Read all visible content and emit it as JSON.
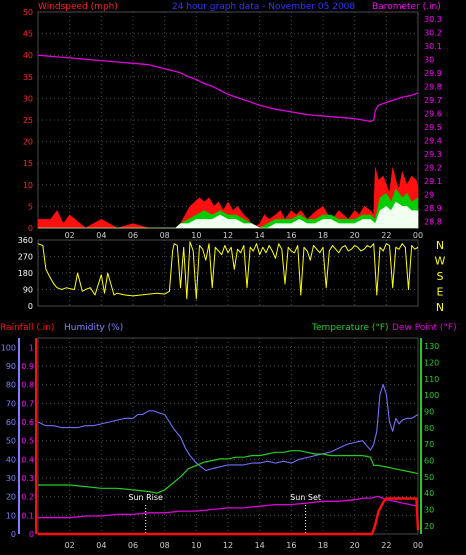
{
  "header": {
    "left": "Windspeed (mph)",
    "center": "24 hour graph data - November 05 2008",
    "right": "Barometer (.in)"
  },
  "colors": {
    "background": "#000000",
    "frame": "#4a4a4a",
    "gust": "#ff1010",
    "avg_wind": "#00cc00",
    "wind_min": "#f0fff0",
    "barometer": "#dd00dd",
    "direction": "#ffff00",
    "rain": "#ff1010",
    "humidity": "#7070ff",
    "temperature": "#22cc22",
    "dewpoint": "#dd00dd",
    "header_left": "#ff2020",
    "header_center": "#3333ff",
    "header_right": "#ff00ff",
    "hum_axis": "#8080ff",
    "temp_axis": "#22cc22",
    "marker": "#ffffff"
  },
  "x_ticks": [
    "02",
    "04",
    "06",
    "08",
    "10",
    "12",
    "14",
    "16",
    "18",
    "20",
    "22",
    "00"
  ],
  "chart_data": [
    {
      "type": "area",
      "left_axis": {
        "label": "Windspeed (mph)",
        "ticks": [
          "0",
          "5",
          "10",
          "15",
          "20",
          "25",
          "30",
          "35",
          "40",
          "45",
          "50"
        ],
        "range": [
          0,
          50
        ]
      },
      "right_axis": {
        "label": "Barometer (.in)",
        "ticks": [
          "28.8",
          "28.9",
          "29",
          "29.1",
          "29.2",
          "29.3",
          "29.4",
          "29.5",
          "29.6",
          "29.7",
          "29.8",
          "29.9",
          "30",
          "30.1",
          "30.2",
          "30.3"
        ],
        "range": [
          28.75,
          30.35
        ]
      },
      "series": [
        {
          "name": "Windspeed (mph)",
          "role": "gust",
          "x": [
            0,
            0.8,
            1.2,
            1.6,
            2,
            3,
            4,
            5,
            6,
            7,
            8,
            8.5,
            8.7,
            9,
            9.3,
            9.6,
            9.9,
            10.2,
            10.5,
            10.8,
            11.1,
            11.4,
            11.7,
            12,
            12.3,
            12.6,
            13,
            13.3,
            13.6,
            14,
            14.3,
            14.6,
            15,
            15.3,
            15.6,
            16,
            16.3,
            16.6,
            17,
            17.3,
            17.6,
            18,
            18.3,
            18.6,
            19,
            19.3,
            19.6,
            20,
            20.3,
            20.6,
            21,
            21.2,
            21.3,
            21.5,
            21.8,
            22,
            22.2,
            22.4,
            22.6,
            22.8,
            23,
            23.3,
            23.6,
            23.9,
            24
          ],
          "y": [
            2,
            2,
            4,
            1,
            3,
            0,
            2,
            0,
            1,
            0,
            0,
            0,
            0,
            1,
            3,
            5,
            6,
            7,
            6,
            7,
            5,
            6,
            4,
            6,
            4,
            5,
            3,
            2,
            0,
            1,
            3,
            2,
            3,
            4,
            2,
            4,
            3,
            4,
            2,
            3,
            4,
            5,
            3,
            2,
            4,
            3,
            2,
            4,
            3,
            5,
            4,
            3,
            14,
            11,
            12,
            10,
            8,
            14,
            11,
            9,
            13,
            10,
            12,
            11,
            9
          ]
        },
        {
          "name": "Average",
          "role": "avg",
          "x": [
            0,
            2,
            4,
            6,
            8,
            8.7,
            9,
            9.5,
            10,
            10.5,
            11,
            11.5,
            12,
            12.5,
            13,
            13.5,
            14,
            14.5,
            15,
            15.5,
            16,
            16.5,
            17,
            17.5,
            18,
            18.5,
            19,
            19.5,
            20,
            20.5,
            21,
            21.3,
            21.6,
            22,
            22.3,
            22.6,
            23,
            23.3,
            23.6,
            24
          ],
          "y": [
            0,
            0,
            0,
            0,
            0,
            0,
            1,
            2,
            3,
            4,
            3,
            4,
            3,
            3,
            2,
            1,
            0,
            1,
            2,
            2,
            2,
            3,
            2,
            2,
            3,
            3,
            2,
            2,
            2,
            3,
            3,
            2,
            7,
            8,
            6,
            9,
            7,
            8,
            6,
            7
          ]
        },
        {
          "name": "Minimum",
          "role": "min",
          "x": [
            0,
            8.7,
            9,
            9.5,
            10,
            10.5,
            11,
            11.5,
            12,
            12.5,
            13,
            13.5,
            14,
            14.5,
            15,
            15.5,
            16,
            16.5,
            17,
            17.5,
            18,
            18.5,
            19,
            19.5,
            20,
            20.5,
            21,
            21.3,
            21.6,
            22,
            22.3,
            22.6,
            23,
            23.3,
            23.6,
            24
          ],
          "y": [
            0,
            0,
            1,
            1,
            2,
            2,
            2,
            3,
            2,
            2,
            1,
            1,
            0,
            0,
            1,
            1,
            1,
            2,
            1,
            1,
            2,
            2,
            1,
            1,
            1,
            2,
            2,
            1,
            4,
            5,
            4,
            6,
            5,
            5,
            4,
            4
          ]
        },
        {
          "name": "Barometer (.in)",
          "role": "barometer",
          "x": [
            0,
            1,
            2,
            3,
            4,
            5,
            6,
            7,
            8,
            9,
            9.5,
            10,
            10.5,
            11,
            11.5,
            12,
            12.5,
            13,
            13.5,
            14,
            15,
            16,
            17,
            18,
            19,
            20,
            20.5,
            21,
            21.2,
            21.3,
            21.5,
            22,
            23,
            23.5,
            24
          ],
          "y": [
            30.03,
            30.02,
            30.01,
            30.0,
            29.99,
            29.98,
            29.97,
            29.96,
            29.93,
            29.9,
            29.87,
            29.85,
            29.82,
            29.8,
            29.77,
            29.74,
            29.72,
            29.7,
            29.68,
            29.66,
            29.63,
            29.61,
            29.59,
            29.58,
            29.57,
            29.56,
            29.55,
            29.54,
            29.55,
            29.62,
            29.66,
            29.68,
            29.72,
            29.73,
            29.75
          ]
        }
      ]
    },
    {
      "type": "line",
      "right_labels": [
        "N",
        "W",
        "S",
        "E",
        "N"
      ],
      "left_axis": {
        "ticks": [
          "0",
          "90",
          "180",
          "270",
          "360"
        ],
        "range": [
          0,
          360
        ]
      },
      "series": [
        {
          "name": "Direction",
          "role": "direction",
          "x": [
            0,
            0.3,
            0.5,
            0.8,
            1.0,
            1.2,
            1.5,
            1.8,
            2.0,
            2.3,
            2.5,
            2.8,
            3.0,
            3.3,
            3.6,
            4.0,
            4.2,
            4.4,
            4.8,
            5.0,
            5.5,
            6.0,
            6.5,
            7.0,
            7.5,
            8.0,
            8.3,
            8.5,
            8.6,
            8.8,
            9.0,
            9.2,
            9.4,
            9.6,
            9.8,
            10.0,
            10.2,
            10.4,
            10.6,
            10.8,
            11.0,
            11.2,
            11.4,
            11.6,
            11.8,
            12.0,
            12.2,
            12.4,
            12.6,
            12.8,
            13.0,
            13.2,
            13.4,
            13.6,
            13.8,
            14.0,
            14.2,
            14.4,
            14.6,
            14.8,
            15.0,
            15.2,
            15.4,
            15.6,
            15.8,
            16.0,
            16.2,
            16.4,
            16.6,
            16.8,
            17.0,
            17.2,
            17.4,
            17.6,
            17.8,
            18.0,
            18.2,
            18.4,
            18.6,
            18.8,
            19.0,
            19.2,
            19.4,
            19.6,
            19.8,
            20.0,
            20.2,
            20.4,
            20.6,
            20.8,
            21.0,
            21.2,
            21.4,
            21.6,
            21.8,
            22.0,
            22.2,
            22.4,
            22.6,
            22.8,
            23.0,
            23.2,
            23.4,
            23.6,
            23.8,
            24.0
          ],
          "y": [
            340,
            330,
            200,
            150,
            120,
            100,
            90,
            100,
            95,
            90,
            180,
            80,
            90,
            100,
            60,
            170,
            70,
            180,
            60,
            70,
            60,
            55,
            60,
            65,
            70,
            65,
            80,
            300,
            340,
            330,
            100,
            320,
            40,
            350,
            300,
            40,
            330,
            310,
            250,
            340,
            100,
            320,
            300,
            280,
            330,
            290,
            320,
            200,
            310,
            290,
            330,
            100,
            320,
            300,
            340,
            280,
            320,
            290,
            330,
            300,
            260,
            340,
            310,
            120,
            320,
            300,
            290,
            330,
            60,
            320,
            300,
            250,
            330,
            310,
            290,
            320,
            100,
            300,
            330,
            310,
            290,
            320,
            330,
            300,
            310,
            330,
            320,
            300,
            310,
            330,
            320,
            340,
            60,
            320,
            300,
            340,
            330,
            100,
            320,
            310,
            340,
            320,
            90,
            330,
            310,
            320
          ]
        }
      ]
    },
    {
      "type": "line",
      "left_labels": [
        "Rainfall (.in)",
        "Humidity (%)"
      ],
      "right_labels": [
        "Temperature (°F)",
        "Dew Point (°F)"
      ],
      "rain_axis": {
        "ticks": [
          "0",
          "0.1",
          "0.2",
          "0.3",
          "0.4",
          "0.5",
          "0.6",
          "0.7",
          "0.8",
          "0.9",
          "1"
        ],
        "range": [
          0,
          1.05
        ]
      },
      "hum_axis": {
        "ticks": [
          "0",
          "10",
          "20",
          "30",
          "40",
          "50",
          "60",
          "70",
          "80",
          "90",
          "100"
        ],
        "range": [
          0,
          105
        ]
      },
      "temp_axis": {
        "ticks": [
          "20",
          "30",
          "40",
          "50",
          "60",
          "70",
          "80",
          "90",
          "100",
          "110",
          "120",
          "130"
        ],
        "range": [
          15,
          135
        ]
      },
      "annotations": {
        "sun_rise": "Sun Rise",
        "sun_rise_x": 6.8,
        "sun_set": "Sun Set",
        "sun_set_x": 16.9
      },
      "series": [
        {
          "name": "Rainfall (.in)",
          "role": "rain",
          "x": [
            0,
            20.9,
            21.1,
            21.3,
            21.5,
            21.8,
            22.0,
            22.5,
            23.0,
            23.5,
            23.9,
            24
          ],
          "y": [
            0,
            0,
            0,
            0.05,
            0.12,
            0.17,
            0.19,
            0.19,
            0.19,
            0.19,
            0.19,
            0.02
          ]
        },
        {
          "name": "Humidity (%)",
          "role": "humidity",
          "x": [
            0,
            0.5,
            1,
            1.5,
            2,
            2.5,
            3,
            3.5,
            4,
            4.5,
            5,
            5.5,
            6,
            6.3,
            6.6,
            7,
            7.3,
            7.6,
            8,
            8.3,
            8.6,
            9,
            9.3,
            9.6,
            10,
            10.3,
            10.6,
            11,
            11.5,
            12,
            12.5,
            13,
            13.5,
            14,
            14.5,
            15,
            15.5,
            16,
            16.5,
            17,
            17.5,
            18,
            18.5,
            19,
            19.5,
            20,
            20.5,
            20.8,
            21,
            21.2,
            21.4,
            21.6,
            21.8,
            22,
            22.2,
            22.4,
            22.6,
            22.8,
            23,
            23.3,
            23.6,
            24
          ],
          "y": [
            60,
            58,
            58,
            57,
            57,
            57,
            58,
            58,
            59,
            60,
            61,
            62,
            62,
            64,
            64,
            66,
            66,
            65,
            64,
            60,
            56,
            52,
            46,
            42,
            38,
            36,
            34,
            35,
            36,
            37,
            37,
            37,
            38,
            38,
            39,
            38,
            39,
            38,
            40,
            41,
            42,
            43,
            44,
            46,
            48,
            49,
            50,
            47,
            45,
            48,
            55,
            75,
            80,
            75,
            60,
            55,
            62,
            59,
            61,
            62,
            62,
            64
          ]
        },
        {
          "name": "Temperature (°F)",
          "role": "temperature",
          "x": [
            0,
            1,
            2,
            3,
            4,
            5,
            6,
            7,
            7.5,
            8,
            8.5,
            9,
            9.5,
            10,
            10.5,
            11,
            11.5,
            12,
            12.5,
            13,
            13.5,
            14,
            14.5,
            15,
            15.5,
            16,
            16.5,
            17,
            17.5,
            18,
            18.5,
            19,
            19.5,
            20,
            20.5,
            21,
            21.2,
            21.5,
            22,
            22.5,
            23,
            23.5,
            24
          ],
          "y": [
            45,
            45,
            45,
            44,
            43,
            43,
            42,
            41,
            40,
            42,
            46,
            50,
            55,
            57,
            59,
            60,
            61,
            61,
            62,
            62,
            63,
            63,
            64,
            65,
            65,
            66,
            66,
            65,
            64,
            64,
            63,
            63,
            63,
            63,
            63,
            62,
            57,
            57,
            56,
            55,
            54,
            53,
            52
          ]
        },
        {
          "name": "Dew Point (°F)",
          "role": "dewpoint",
          "x": [
            0,
            1,
            2,
            3,
            4,
            5,
            6,
            7,
            8,
            9,
            10,
            11,
            12,
            13,
            14,
            15,
            16,
            17,
            18,
            19,
            20,
            20.5,
            21,
            21.5,
            22,
            22.5,
            23,
            23.5,
            24
          ],
          "y": [
            25,
            25,
            25,
            26,
            26,
            27,
            27,
            28,
            28,
            29,
            29,
            30,
            31,
            31,
            32,
            33,
            33,
            34,
            35,
            35,
            36,
            37,
            37,
            38,
            36,
            35,
            34,
            33,
            32
          ]
        }
      ]
    }
  ]
}
